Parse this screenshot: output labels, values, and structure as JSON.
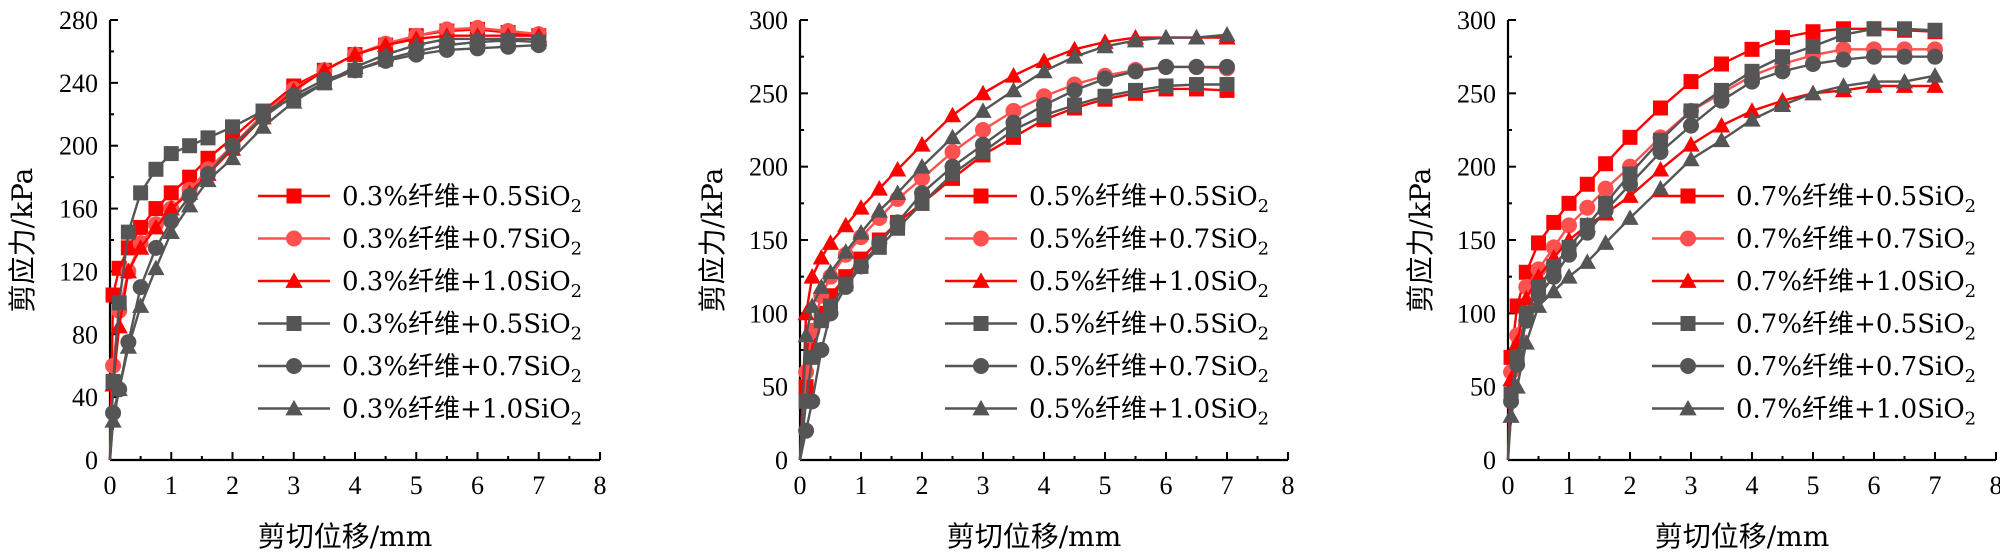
{
  "chart_data": [
    {
      "type": "line",
      "title": "",
      "xlabel": "剪切位移/mm",
      "ylabel": "剪应力/kPa",
      "xlim": [
        0,
        8
      ],
      "ylim": [
        0,
        280
      ],
      "xticks": [
        "0",
        "1",
        "2",
        "3",
        "4",
        "5",
        "6",
        "7",
        "8"
      ],
      "yticks": [
        "0",
        "40",
        "80",
        "120",
        "160",
        "200",
        "240",
        "280"
      ],
      "legend_position": "right",
      "series": [
        {
          "name": "0.3%纤维+0.5SiO2",
          "color": "#ff0000",
          "marker": "square",
          "x": [
            0,
            0.05,
            0.15,
            0.3,
            0.5,
            0.75,
            1.0,
            1.3,
            1.6,
            2.0,
            2.5,
            3.0,
            3.5,
            4.0,
            4.5,
            5.0,
            5.5,
            6.0,
            6.5,
            7.0
          ],
          "y": [
            0,
            105,
            122,
            135,
            148,
            160,
            170,
            180,
            192,
            205,
            222,
            238,
            248,
            258,
            264,
            270,
            273,
            274,
            272,
            270
          ]
        },
        {
          "name": "0.3%纤维+0.7SiO2",
          "color": "#ff5050",
          "marker": "circle",
          "x": [
            0,
            0.05,
            0.15,
            0.3,
            0.5,
            0.75,
            1.0,
            1.3,
            1.6,
            2.0,
            2.5,
            3.0,
            3.5,
            4.0,
            4.5,
            5.0,
            5.5,
            6.0,
            6.5,
            7.0
          ],
          "y": [
            0,
            60,
            95,
            120,
            138,
            150,
            160,
            172,
            185,
            200,
            220,
            236,
            248,
            258,
            265,
            270,
            274,
            275,
            273,
            271
          ]
        },
        {
          "name": "0.3%纤维+1.0SiO2",
          "color": "#ff0000",
          "marker": "triangle",
          "x": [
            0,
            0.05,
            0.15,
            0.3,
            0.5,
            0.75,
            1.0,
            1.3,
            1.6,
            2.0,
            2.5,
            3.0,
            3.5,
            4.0,
            4.5,
            5.0,
            5.5,
            6.0,
            6.5,
            7.0
          ],
          "y": [
            0,
            48,
            85,
            120,
            135,
            148,
            160,
            170,
            182,
            198,
            218,
            235,
            248,
            258,
            264,
            268,
            270,
            270,
            270,
            270
          ]
        },
        {
          "name": "0.3%纤维+0.5SiO2",
          "color": "#555555",
          "marker": "square",
          "x": [
            0,
            0.05,
            0.15,
            0.3,
            0.5,
            0.75,
            1.0,
            1.3,
            1.6,
            2.0,
            2.5,
            3.0,
            3.5,
            4.0,
            4.5,
            5.0,
            5.5,
            6.0,
            6.5,
            7.0
          ],
          "y": [
            0,
            50,
            100,
            145,
            170,
            185,
            195,
            200,
            205,
            212,
            222,
            230,
            240,
            248,
            255,
            260,
            264,
            266,
            267,
            266
          ]
        },
        {
          "name": "0.3%纤维+0.7SiO2",
          "color": "#555555",
          "marker": "circle",
          "x": [
            0,
            0.05,
            0.15,
            0.3,
            0.5,
            0.75,
            1.0,
            1.3,
            1.6,
            2.0,
            2.5,
            3.0,
            3.5,
            4.0,
            4.5,
            5.0,
            5.5,
            6.0,
            6.5,
            7.0
          ],
          "y": [
            0,
            30,
            45,
            75,
            110,
            135,
            152,
            168,
            182,
            200,
            218,
            232,
            242,
            248,
            254,
            258,
            261,
            262,
            263,
            264
          ]
        },
        {
          "name": "0.3%纤维+1.0SiO2",
          "color": "#555555",
          "marker": "triangle",
          "x": [
            0,
            0.05,
            0.15,
            0.3,
            0.5,
            0.75,
            1.0,
            1.3,
            1.6,
            2.0,
            2.5,
            3.0,
            3.5,
            4.0,
            4.5,
            5.0,
            5.5,
            6.0,
            6.5,
            7.0
          ],
          "y": [
            0,
            25,
            45,
            72,
            98,
            122,
            145,
            162,
            178,
            192,
            212,
            228,
            240,
            250,
            258,
            264,
            268,
            268,
            268,
            268
          ]
        }
      ]
    },
    {
      "type": "line",
      "title": "",
      "xlabel": "剪切位移/mm",
      "ylabel": "剪应力/kPa",
      "xlim": [
        0,
        8
      ],
      "ylim": [
        0,
        300
      ],
      "xticks": [
        "0",
        "1",
        "2",
        "3",
        "4",
        "5",
        "6",
        "7",
        "8"
      ],
      "yticks": [
        "0",
        "50",
        "100",
        "150",
        "200",
        "250",
        "300"
      ],
      "legend_position": "right",
      "series": [
        {
          "name": "0.5%纤维+0.5SiO2",
          "color": "#ff0000",
          "marker": "square",
          "x": [
            0,
            0.1,
            0.2,
            0.35,
            0.5,
            0.75,
            1.0,
            1.3,
            1.6,
            2.0,
            2.5,
            3.0,
            3.5,
            4.0,
            4.5,
            5.0,
            5.5,
            6.0,
            6.5,
            7.0
          ],
          "y": [
            0,
            50,
            75,
            100,
            112,
            125,
            137,
            150,
            162,
            175,
            192,
            208,
            220,
            232,
            240,
            246,
            250,
            253,
            253,
            252
          ]
        },
        {
          "name": "0.5%纤维+0.7SiO2",
          "color": "#ff5050",
          "marker": "circle",
          "x": [
            0,
            0.1,
            0.2,
            0.35,
            0.5,
            0.75,
            1.0,
            1.3,
            1.6,
            2.0,
            2.5,
            3.0,
            3.5,
            4.0,
            4.5,
            5.0,
            5.5,
            6.0,
            6.5,
            7.0
          ],
          "y": [
            0,
            60,
            88,
            112,
            125,
            140,
            152,
            165,
            178,
            192,
            210,
            225,
            238,
            248,
            256,
            262,
            266,
            268,
            268,
            267
          ]
        },
        {
          "name": "0.5%纤维+1.0SiO2",
          "color": "#ff0000",
          "marker": "triangle",
          "x": [
            0,
            0.1,
            0.2,
            0.35,
            0.5,
            0.75,
            1.0,
            1.3,
            1.6,
            2.0,
            2.5,
            3.0,
            3.5,
            4.0,
            4.5,
            5.0,
            5.5,
            6.0,
            6.5,
            7.0
          ],
          "y": [
            0,
            100,
            125,
            138,
            148,
            160,
            172,
            185,
            198,
            215,
            235,
            250,
            262,
            272,
            280,
            285,
            288,
            288,
            288,
            288
          ]
        },
        {
          "name": "0.5%纤维+0.5SiO2",
          "color": "#555555",
          "marker": "square",
          "x": [
            0,
            0.1,
            0.2,
            0.35,
            0.5,
            0.75,
            1.0,
            1.3,
            1.6,
            2.0,
            2.5,
            3.0,
            3.5,
            4.0,
            4.5,
            5.0,
            5.5,
            6.0,
            6.5,
            7.0
          ],
          "y": [
            0,
            40,
            70,
            95,
            105,
            120,
            132,
            145,
            158,
            175,
            195,
            210,
            225,
            235,
            242,
            248,
            252,
            255,
            256,
            256
          ]
        },
        {
          "name": "0.5%纤维+0.7SiO2",
          "color": "#555555",
          "marker": "circle",
          "x": [
            0,
            0.1,
            0.2,
            0.35,
            0.5,
            0.75,
            1.0,
            1.3,
            1.6,
            2.0,
            2.5,
            3.0,
            3.5,
            4.0,
            4.5,
            5.0,
            5.5,
            6.0,
            6.5,
            7.0
          ],
          "y": [
            0,
            20,
            40,
            75,
            100,
            118,
            132,
            148,
            162,
            182,
            200,
            215,
            230,
            242,
            252,
            260,
            265,
            268,
            268,
            268
          ]
        },
        {
          "name": "0.5%纤维+1.0SiO2",
          "color": "#555555",
          "marker": "triangle",
          "x": [
            0,
            0.1,
            0.2,
            0.35,
            0.5,
            0.75,
            1.0,
            1.3,
            1.6,
            2.0,
            2.5,
            3.0,
            3.5,
            4.0,
            4.5,
            5.0,
            5.5,
            6.0,
            6.5,
            7.0
          ],
          "y": [
            0,
            85,
            105,
            118,
            128,
            142,
            155,
            170,
            182,
            200,
            220,
            238,
            252,
            265,
            275,
            282,
            286,
            288,
            288,
            290
          ]
        }
      ]
    },
    {
      "type": "line",
      "title": "",
      "xlabel": "剪切位移/mm",
      "ylabel": "剪应力/kPa",
      "xlim": [
        0,
        8
      ],
      "ylim": [
        0,
        300
      ],
      "xticks": [
        "0",
        "1",
        "2",
        "3",
        "4",
        "5",
        "6",
        "7",
        "8"
      ],
      "yticks": [
        "0",
        "50",
        "100",
        "150",
        "200",
        "250",
        "300"
      ],
      "legend_position": "right",
      "series": [
        {
          "name": "0.7%纤维+0.5SiO2",
          "color": "#ff0000",
          "marker": "square",
          "x": [
            0,
            0.05,
            0.15,
            0.3,
            0.5,
            0.75,
            1.0,
            1.3,
            1.6,
            2.0,
            2.5,
            3.0,
            3.5,
            4.0,
            4.5,
            5.0,
            5.5,
            6.0,
            6.5,
            7.0
          ],
          "y": [
            0,
            70,
            105,
            128,
            148,
            162,
            175,
            188,
            202,
            220,
            240,
            258,
            270,
            280,
            288,
            292,
            294,
            294,
            293,
            292
          ]
        },
        {
          "name": "0.7%纤维+0.7SiO2",
          "color": "#ff5050",
          "marker": "circle",
          "x": [
            0,
            0.05,
            0.15,
            0.3,
            0.5,
            0.75,
            1.0,
            1.3,
            1.6,
            2.0,
            2.5,
            3.0,
            3.5,
            4.0,
            4.5,
            5.0,
            5.5,
            6.0,
            6.5,
            7.0
          ],
          "y": [
            0,
            60,
            85,
            118,
            130,
            145,
            160,
            172,
            185,
            200,
            220,
            238,
            250,
            262,
            270,
            276,
            280,
            280,
            280,
            280
          ]
        },
        {
          "name": "0.7%纤维+1.0SiO2",
          "color": "#ff0000",
          "marker": "triangle",
          "x": [
            0,
            0.05,
            0.15,
            0.3,
            0.5,
            0.75,
            1.0,
            1.3,
            1.6,
            2.0,
            2.5,
            3.0,
            3.5,
            4.0,
            4.5,
            5.0,
            5.5,
            6.0,
            6.5,
            7.0
          ],
          "y": [
            0,
            55,
            80,
            110,
            125,
            138,
            150,
            160,
            168,
            180,
            198,
            215,
            228,
            238,
            245,
            250,
            252,
            255,
            255,
            255
          ]
        },
        {
          "name": "0.7%纤维+0.5SiO2",
          "color": "#555555",
          "marker": "square",
          "x": [
            0,
            0.05,
            0.15,
            0.3,
            0.5,
            0.75,
            1.0,
            1.3,
            1.6,
            2.0,
            2.5,
            3.0,
            3.5,
            4.0,
            4.5,
            5.0,
            5.5,
            6.0,
            6.5,
            7.0
          ],
          "y": [
            0,
            45,
            70,
            100,
            118,
            132,
            145,
            160,
            175,
            195,
            218,
            238,
            252,
            265,
            275,
            282,
            290,
            294,
            294,
            293
          ]
        },
        {
          "name": "0.7%纤维+0.7SiO2",
          "color": "#555555",
          "marker": "circle",
          "x": [
            0,
            0.05,
            0.15,
            0.3,
            0.5,
            0.75,
            1.0,
            1.3,
            1.6,
            2.0,
            2.5,
            3.0,
            3.5,
            4.0,
            4.5,
            5.0,
            5.5,
            6.0,
            6.5,
            7.0
          ],
          "y": [
            0,
            40,
            65,
            95,
            112,
            125,
            140,
            155,
            170,
            188,
            210,
            228,
            245,
            258,
            265,
            270,
            273,
            275,
            275,
            275
          ]
        },
        {
          "name": "0.7%纤维+1.0SiO2",
          "color": "#555555",
          "marker": "triangle",
          "x": [
            0,
            0.05,
            0.15,
            0.3,
            0.5,
            0.75,
            1.0,
            1.3,
            1.6,
            2.0,
            2.5,
            3.0,
            3.5,
            4.0,
            4.5,
            5.0,
            5.5,
            6.0,
            6.5,
            7.0
          ],
          "y": [
            0,
            30,
            50,
            80,
            105,
            115,
            125,
            135,
            148,
            165,
            185,
            205,
            218,
            232,
            242,
            250,
            255,
            258,
            258,
            262
          ]
        }
      ]
    }
  ]
}
